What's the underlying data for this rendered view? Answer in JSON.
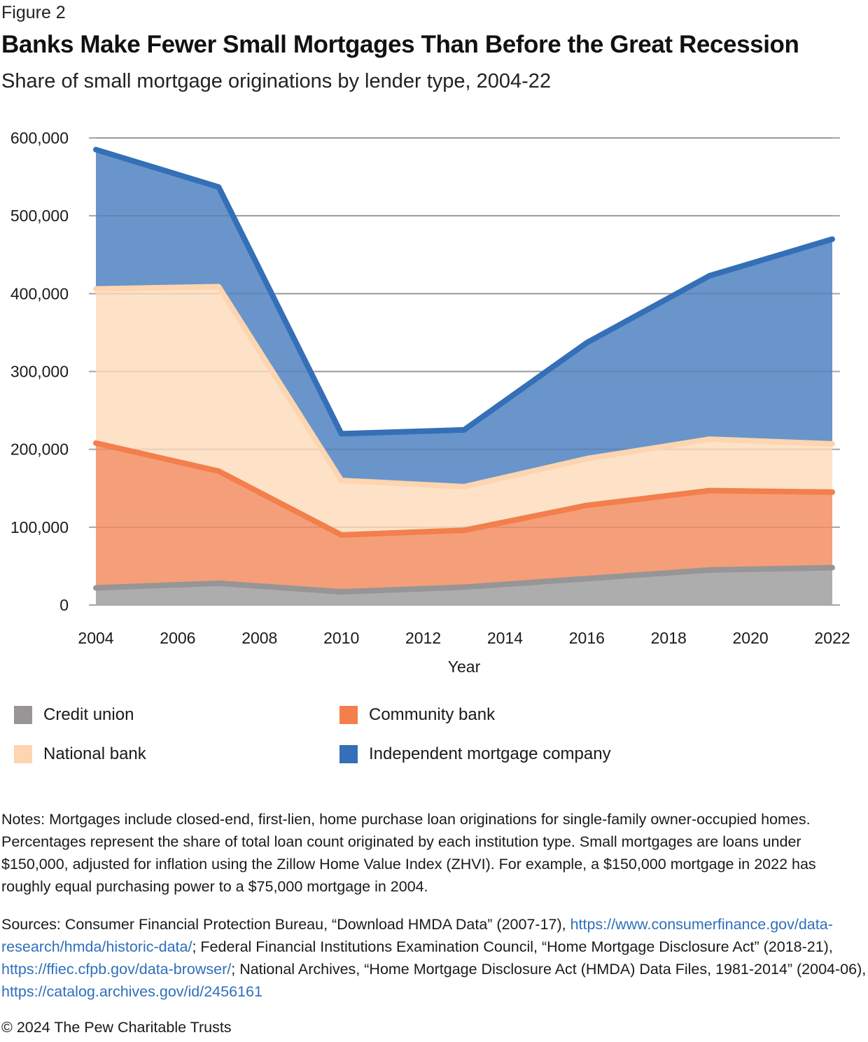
{
  "figure_label": "Figure 2",
  "title": "Banks Make Fewer Small Mortgages Than Before the Great Recession",
  "subtitle": "Share of small mortgage originations by lender type, 2004-22",
  "chart_data": {
    "type": "area",
    "stacked": true,
    "title": "Banks Make Fewer Small Mortgages Than Before the Great Recession",
    "subtitle": "Share of small mortgage originations by lender type, 2004-22",
    "xlabel": "Year",
    "ylabel": "",
    "x": [
      2004,
      2007,
      2010,
      2013,
      2016,
      2019,
      2022
    ],
    "xlim": [
      2004,
      2022
    ],
    "ylim": [
      0,
      600000
    ],
    "x_ticks": [
      "2004",
      "2006",
      "2008",
      "2010",
      "2012",
      "2014",
      "2016",
      "2018",
      "2020",
      "2022"
    ],
    "x_tick_values": [
      2004,
      2006,
      2008,
      2010,
      2012,
      2014,
      2016,
      2018,
      2020,
      2022
    ],
    "y_ticks": [
      "0",
      "100,000",
      "200,000",
      "300,000",
      "400,000",
      "500,000",
      "600,000"
    ],
    "y_tick_values": [
      0,
      100000,
      200000,
      300000,
      400000,
      500000,
      600000
    ],
    "grid": true,
    "legend_position": "bottom",
    "series": [
      {
        "name": "Credit union",
        "fill": "#ababab",
        "line": "#979595",
        "values": [
          22000,
          28000,
          17000,
          23000,
          34000,
          45000,
          48000
        ]
      },
      {
        "name": "Community bank",
        "fill": "#f59d77",
        "line": "#f27f4c",
        "values": [
          186000,
          144000,
          73000,
          73000,
          94000,
          102000,
          97000
        ]
      },
      {
        "name": "National bank",
        "fill": "#fde1c6",
        "line": "#fdd5b0",
        "values": [
          198000,
          237000,
          70000,
          56000,
          60000,
          66000,
          62000
        ]
      },
      {
        "name": "Independent mortgage company",
        "fill": "#6693c9",
        "line": "#346fb7",
        "values": [
          179000,
          128000,
          60000,
          73000,
          149000,
          210000,
          263000
        ]
      }
    ]
  },
  "legend": [
    {
      "label": "Credit union",
      "color": "#979595"
    },
    {
      "label": "Community bank",
      "color": "#f27f4c"
    },
    {
      "label": "National bank",
      "color": "#fdd5b0"
    },
    {
      "label": "Independent mortgage company",
      "color": "#346fb7"
    }
  ],
  "notes": "Notes: Mortgages include closed-end, first-lien, home purchase loan originations for single-family owner-occupied homes. Percentages represent the share of total loan count originated by each institution type. Small mortgages are loans under $150,000, adjusted for inflation using the Zillow Home Value Index (ZHVI). For example, a $150,000 mortgage in 2022 has roughly equal purchasing power to a $75,000 mortgage in 2004.",
  "sources": {
    "text_1": "Sources: Consumer Financial Protection Bureau, “Download HMDA Data” (2007-17), ",
    "link_1": "https://www.consumerfinance.gov/data-research/hmda/historic-data/",
    "text_2": "; Federal Financial Institutions Examination Council, “Home Mortgage Disclosure Act” (2018-21), ",
    "link_2": "https://ffiec.cfpb.gov/data-browser/",
    "text_3": "; National Archives, “Home Mortgage Disclosure Act (HMDA) Data Files, 1981-2014” (2004-06), ",
    "link_3": "https://catalog.archives.gov/id/2456161"
  },
  "copyright": "© 2024 The Pew Charitable Trusts"
}
